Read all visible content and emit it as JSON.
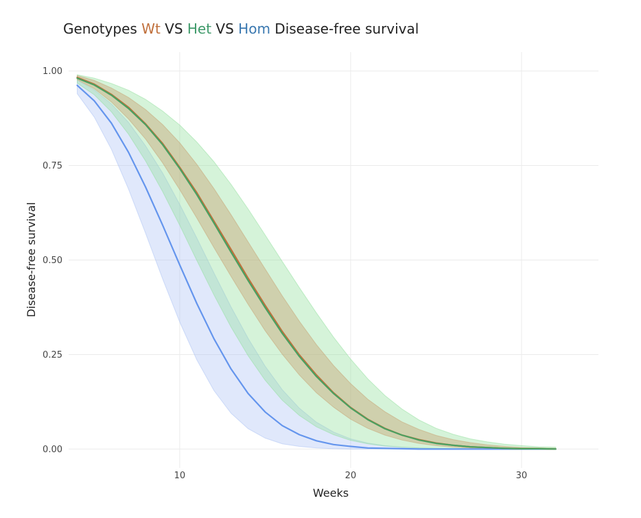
{
  "title": {
    "prefix": "Genotypes ",
    "wt": "Wt",
    "vs1": " VS ",
    "het": "Het",
    "vs2": " VS ",
    "hom": "Hom",
    "suffix": " Disease-free survival"
  },
  "colors": {
    "wt_line": "#c0703c",
    "het_line": "#4aa060",
    "hom_line": "#6495ed",
    "wt_band": "#c8a070",
    "het_band": "#90e09c",
    "hom_band": "#a8bff4",
    "wt_title": "#c0703c",
    "het_title": "#3f9a6a",
    "hom_title": "#3a78b0"
  },
  "chart_data": {
    "type": "line",
    "xlabel": "Weeks",
    "ylabel": "Disease-free survival",
    "xlim": [
      3.5,
      34.5
    ],
    "ylim": [
      -0.05,
      1.05
    ],
    "xticks": [
      10,
      20,
      30
    ],
    "yticks": [
      0.0,
      0.25,
      0.5,
      0.75,
      1.0
    ],
    "ytick_labels": [
      "0.00",
      "0.25",
      "0.50",
      "0.75",
      "1.00"
    ],
    "grid": true,
    "x": [
      4,
      5,
      6,
      7,
      8,
      9,
      10,
      11,
      12,
      13,
      14,
      15,
      16,
      17,
      18,
      19,
      20,
      21,
      22,
      23,
      24,
      25,
      26,
      27,
      28,
      29,
      30,
      31,
      32
    ],
    "series": [
      {
        "name": "Wt",
        "values": [
          0.983,
          0.965,
          0.938,
          0.904,
          0.86,
          0.808,
          0.745,
          0.678,
          0.603,
          0.528,
          0.452,
          0.38,
          0.311,
          0.249,
          0.196,
          0.149,
          0.11,
          0.079,
          0.055,
          0.037,
          0.025,
          0.016,
          0.01,
          0.006,
          0.004,
          0.002,
          0.001,
          0.001,
          0.0
        ],
        "lower": [
          0.977,
          0.953,
          0.918,
          0.873,
          0.82,
          0.757,
          0.686,
          0.611,
          0.533,
          0.457,
          0.383,
          0.313,
          0.251,
          0.196,
          0.149,
          0.111,
          0.079,
          0.055,
          0.037,
          0.024,
          0.015,
          0.009,
          0.005,
          0.003,
          0.002,
          0.001,
          0.0,
          0.0,
          0.0
        ],
        "upper": [
          0.988,
          0.975,
          0.955,
          0.93,
          0.898,
          0.858,
          0.81,
          0.753,
          0.689,
          0.62,
          0.548,
          0.476,
          0.405,
          0.338,
          0.276,
          0.221,
          0.173,
          0.132,
          0.099,
          0.072,
          0.052,
          0.036,
          0.025,
          0.017,
          0.011,
          0.007,
          0.004,
          0.003,
          0.002
        ]
      },
      {
        "name": "Het",
        "values": [
          0.981,
          0.963,
          0.936,
          0.901,
          0.858,
          0.805,
          0.742,
          0.673,
          0.598,
          0.521,
          0.446,
          0.374,
          0.306,
          0.245,
          0.192,
          0.147,
          0.109,
          0.078,
          0.054,
          0.037,
          0.024,
          0.015,
          0.01,
          0.006,
          0.004,
          0.002,
          0.001,
          0.001,
          0.0
        ],
        "lower": [
          0.968,
          0.937,
          0.892,
          0.833,
          0.762,
          0.681,
          0.592,
          0.499,
          0.408,
          0.323,
          0.247,
          0.182,
          0.129,
          0.089,
          0.059,
          0.038,
          0.023,
          0.014,
          0.008,
          0.005,
          0.003,
          0.002,
          0.001,
          0.001,
          0.0,
          0.0,
          0.0,
          0.0,
          0.0
        ],
        "upper": [
          0.99,
          0.981,
          0.967,
          0.949,
          0.925,
          0.894,
          0.857,
          0.812,
          0.76,
          0.7,
          0.635,
          0.566,
          0.496,
          0.427,
          0.36,
          0.296,
          0.238,
          0.186,
          0.142,
          0.106,
          0.077,
          0.055,
          0.039,
          0.027,
          0.019,
          0.013,
          0.009,
          0.006,
          0.005
        ]
      },
      {
        "name": "Hom",
        "values": [
          0.962,
          0.921,
          0.862,
          0.785,
          0.693,
          0.592,
          0.487,
          0.385,
          0.292,
          0.212,
          0.147,
          0.098,
          0.062,
          0.038,
          0.022,
          0.012,
          0.007,
          0.003,
          0.002,
          0.001,
          0.0,
          0.0,
          0.0,
          0.0,
          0.0,
          0.0,
          0.0,
          0.0,
          0.0
        ],
        "lower": [
          0.94,
          0.878,
          0.793,
          0.688,
          0.571,
          0.45,
          0.336,
          0.236,
          0.155,
          0.095,
          0.054,
          0.029,
          0.014,
          0.007,
          0.003,
          0.001,
          0.0,
          0.0,
          0.0,
          0.0,
          0.0,
          0.0,
          0.0,
          0.0,
          0.0,
          0.0,
          0.0,
          0.0,
          0.0
        ],
        "upper": [
          0.976,
          0.95,
          0.913,
          0.864,
          0.802,
          0.73,
          0.647,
          0.558,
          0.466,
          0.376,
          0.293,
          0.219,
          0.157,
          0.108,
          0.071,
          0.045,
          0.027,
          0.016,
          0.009,
          0.005,
          0.003,
          0.001,
          0.001,
          0.0,
          0.0,
          0.0,
          0.0,
          0.0,
          0.0
        ]
      }
    ]
  }
}
